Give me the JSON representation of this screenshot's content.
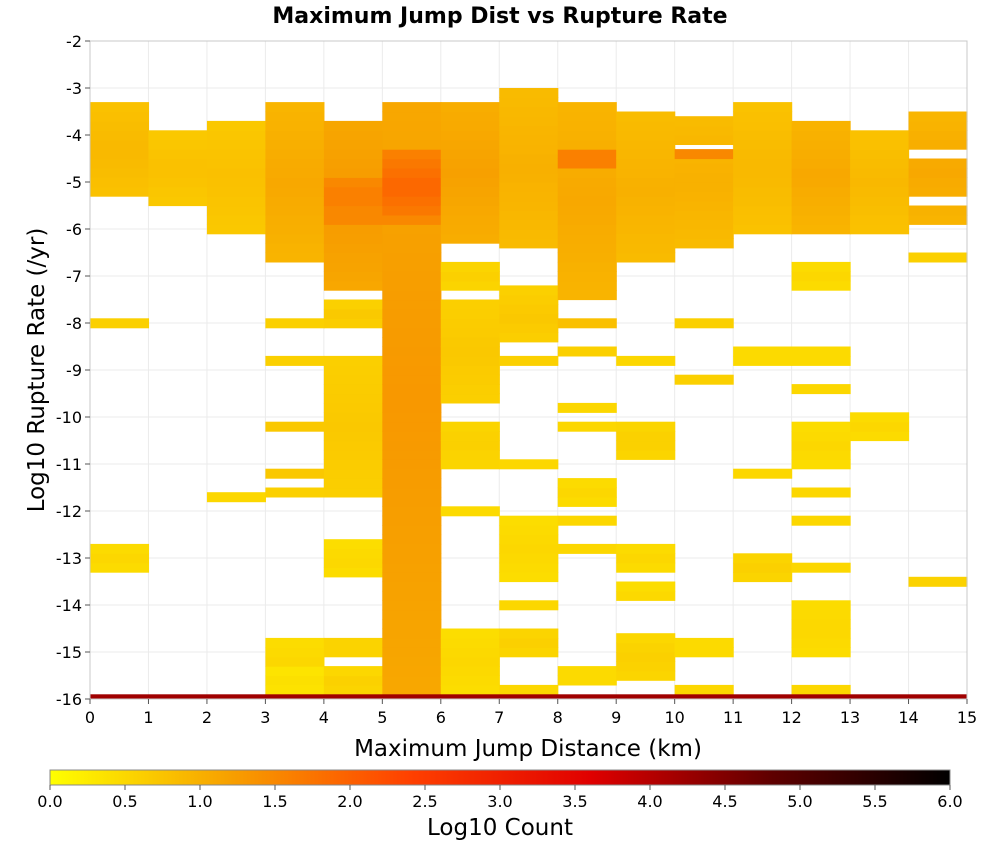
{
  "chart_data": {
    "type": "heatmap",
    "title": "Maximum Jump Dist vs Rupture Rate",
    "xlabel": "Maximum Jump Distance (km)",
    "ylabel": "Log10 Rupture Rate (/yr)",
    "xlim": [
      0,
      15
    ],
    "ylim": [
      -16,
      -2
    ],
    "x_ticks": [
      "0",
      "1",
      "2",
      "3",
      "4",
      "5",
      "6",
      "7",
      "8",
      "9",
      "10",
      "11",
      "12",
      "13",
      "14",
      "15"
    ],
    "y_ticks": [
      "-2",
      "-3",
      "-4",
      "-5",
      "-6",
      "-7",
      "-8",
      "-9",
      "-10",
      "-11",
      "-12",
      "-13",
      "-14",
      "-15",
      "-16"
    ],
    "grid": true,
    "x_bin_width": 1,
    "y_bin_height": 0.2,
    "colorbar": {
      "label": "Log10 Count",
      "range": [
        0,
        6
      ],
      "ticks": [
        "0.0",
        "0.5",
        "1.0",
        "1.5",
        "2.0",
        "2.5",
        "3.0",
        "3.5",
        "4.0",
        "4.5",
        "5.0",
        "5.5",
        "6.0"
      ],
      "stops": [
        "#ffff00",
        "#f7a000",
        "#ff4000",
        "#e00000",
        "#600000",
        "#000000"
      ]
    },
    "columns": [
      {
        "x": 0,
        "segments": [
          [
            -5.3,
            -3.3,
            0.9
          ],
          [
            -8.1,
            -7.9,
            0.6
          ],
          [
            -13.3,
            -12.7,
            0.5
          ]
        ]
      },
      {
        "x": 1,
        "segments": [
          [
            -5.5,
            -3.9,
            0.8
          ]
        ]
      },
      {
        "x": 2,
        "segments": [
          [
            -6.1,
            -3.6,
            0.8
          ],
          [
            -11.8,
            -11.6,
            0.5
          ]
        ]
      },
      {
        "x": 3,
        "segments": [
          [
            -6.7,
            -3.4,
            1.1
          ],
          [
            -8.1,
            -7.9,
            0.6
          ],
          [
            -8.9,
            -8.7,
            0.6
          ],
          [
            -10.3,
            -10.1,
            0.7
          ],
          [
            -11.3,
            -11.1,
            0.7
          ],
          [
            -11.7,
            -11.5,
            0.6
          ],
          [
            -15.7,
            -14.7,
            0.5
          ],
          [
            -15.9,
            -15.4,
            0.4
          ]
        ]
      },
      {
        "x": 4,
        "segments": [
          [
            -7.3,
            -3.6,
            1.3
          ],
          [
            -8.1,
            -7.6,
            0.7
          ],
          [
            -11.7,
            -8.7,
            0.7
          ],
          [
            -13.4,
            -12.7,
            0.5
          ],
          [
            -15.1,
            -14.7,
            0.6
          ],
          [
            -15.9,
            -15.4,
            0.6
          ]
        ]
      },
      {
        "x": 5,
        "segments": [
          [
            -15.9,
            -3.3,
            1.3
          ]
        ]
      },
      {
        "x": 6,
        "segments": [
          [
            -6.3,
            -3.3,
            1.2
          ],
          [
            -7.3,
            -6.7,
            0.6
          ],
          [
            -9.7,
            -7.5,
            0.7
          ],
          [
            -11.1,
            -10.0,
            0.6
          ],
          [
            -12.3,
            -11.9,
            0.5
          ],
          [
            -15.9,
            -14.5,
            0.5
          ]
        ]
      },
      {
        "x": 7,
        "segments": [
          [
            -6.4,
            -3.0,
            1.0
          ],
          [
            -8.4,
            -7.3,
            0.7
          ],
          [
            -8.9,
            -8.7,
            0.6
          ],
          [
            -11.1,
            -10.9,
            0.5
          ],
          [
            -13.5,
            -12.1,
            0.5
          ],
          [
            -14.1,
            -13.9,
            0.5
          ],
          [
            -15.1,
            -14.5,
            0.6
          ],
          [
            -15.9,
            -15.7,
            0.5
          ]
        ]
      },
      {
        "x": 8,
        "segments": [
          [
            -7.5,
            -3.3,
            1.1
          ],
          [
            -8.1,
            -7.9,
            0.8
          ],
          [
            -8.7,
            -8.5,
            0.6
          ],
          [
            -9.9,
            -9.7,
            0.5
          ],
          [
            -10.3,
            -10.1,
            0.5
          ],
          [
            -11.9,
            -11.3,
            0.5
          ],
          [
            -12.3,
            -12.1,
            0.5
          ],
          [
            -12.9,
            -12.7,
            0.5
          ],
          [
            -15.7,
            -15.3,
            0.5
          ]
        ]
      },
      {
        "x": 9,
        "segments": [
          [
            -6.7,
            -3.6,
            1.0
          ],
          [
            -8.9,
            -8.7,
            0.5
          ],
          [
            -10.9,
            -10.1,
            0.6
          ],
          [
            -13.3,
            -12.7,
            0.5
          ],
          [
            -13.9,
            -13.6,
            0.5
          ],
          [
            -15.6,
            -14.7,
            0.6
          ]
        ]
      },
      {
        "x": 10,
        "segments": [
          [
            -6.4,
            -3.6,
            1.0
          ],
          [
            -8.1,
            -7.9,
            0.6
          ],
          [
            -9.3,
            -9.1,
            0.6
          ],
          [
            -15.1,
            -14.7,
            0.5
          ],
          [
            -15.9,
            -15.7,
            0.5
          ]
        ]
      },
      {
        "x": 11,
        "segments": [
          [
            -6.1,
            -3.3,
            0.9
          ],
          [
            -8.9,
            -8.5,
            0.5
          ],
          [
            -11.3,
            -11.1,
            0.5
          ],
          [
            -13.5,
            -12.9,
            0.6
          ]
        ]
      },
      {
        "x": 12,
        "segments": [
          [
            -6.1,
            -3.6,
            1.1
          ],
          [
            -7.3,
            -6.7,
            0.5
          ],
          [
            -8.9,
            -8.5,
            0.5
          ],
          [
            -9.5,
            -9.3,
            0.5
          ],
          [
            -11.1,
            -10.1,
            0.5
          ],
          [
            -11.7,
            -11.5,
            0.5
          ],
          [
            -12.3,
            -12.1,
            0.5
          ],
          [
            -13.3,
            -13.1,
            0.5
          ],
          [
            -15.1,
            -13.9,
            0.5
          ],
          [
            -15.9,
            -15.7,
            0.5
          ]
        ]
      },
      {
        "x": 13,
        "segments": [
          [
            -6.1,
            -3.9,
            0.9
          ],
          [
            -10.5,
            -9.9,
            0.5
          ]
        ]
      },
      {
        "x": 14,
        "segments": [
          [
            -5.9,
            -3.6,
            1.1
          ],
          [
            -6.7,
            -6.5,
            0.6
          ],
          [
            -13.6,
            -13.3,
            0.6
          ]
        ]
      }
    ],
    "overrides": [
      [
        4,
        -5.0,
        1.5
      ],
      [
        4,
        -5.2,
        1.6
      ],
      [
        4,
        -5.4,
        1.6
      ],
      [
        4,
        -5.6,
        1.5
      ],
      [
        4,
        -5.8,
        1.5
      ],
      [
        5,
        -4.4,
        1.6
      ],
      [
        5,
        -4.6,
        1.7
      ],
      [
        5,
        -4.8,
        1.8
      ],
      [
        5,
        -5.0,
        1.9
      ],
      [
        5,
        -5.2,
        1.9
      ],
      [
        5,
        -5.4,
        1.8
      ],
      [
        5,
        -5.6,
        1.7
      ],
      [
        5,
        -5.8,
        1.5
      ],
      [
        8,
        -4.4,
        1.6
      ],
      [
        8,
        -4.6,
        1.6
      ],
      [
        10,
        -4.4,
        1.5
      ]
    ],
    "bottom_band": {
      "y": [
        -16,
        -15.9
      ],
      "value": 4.2
    }
  }
}
